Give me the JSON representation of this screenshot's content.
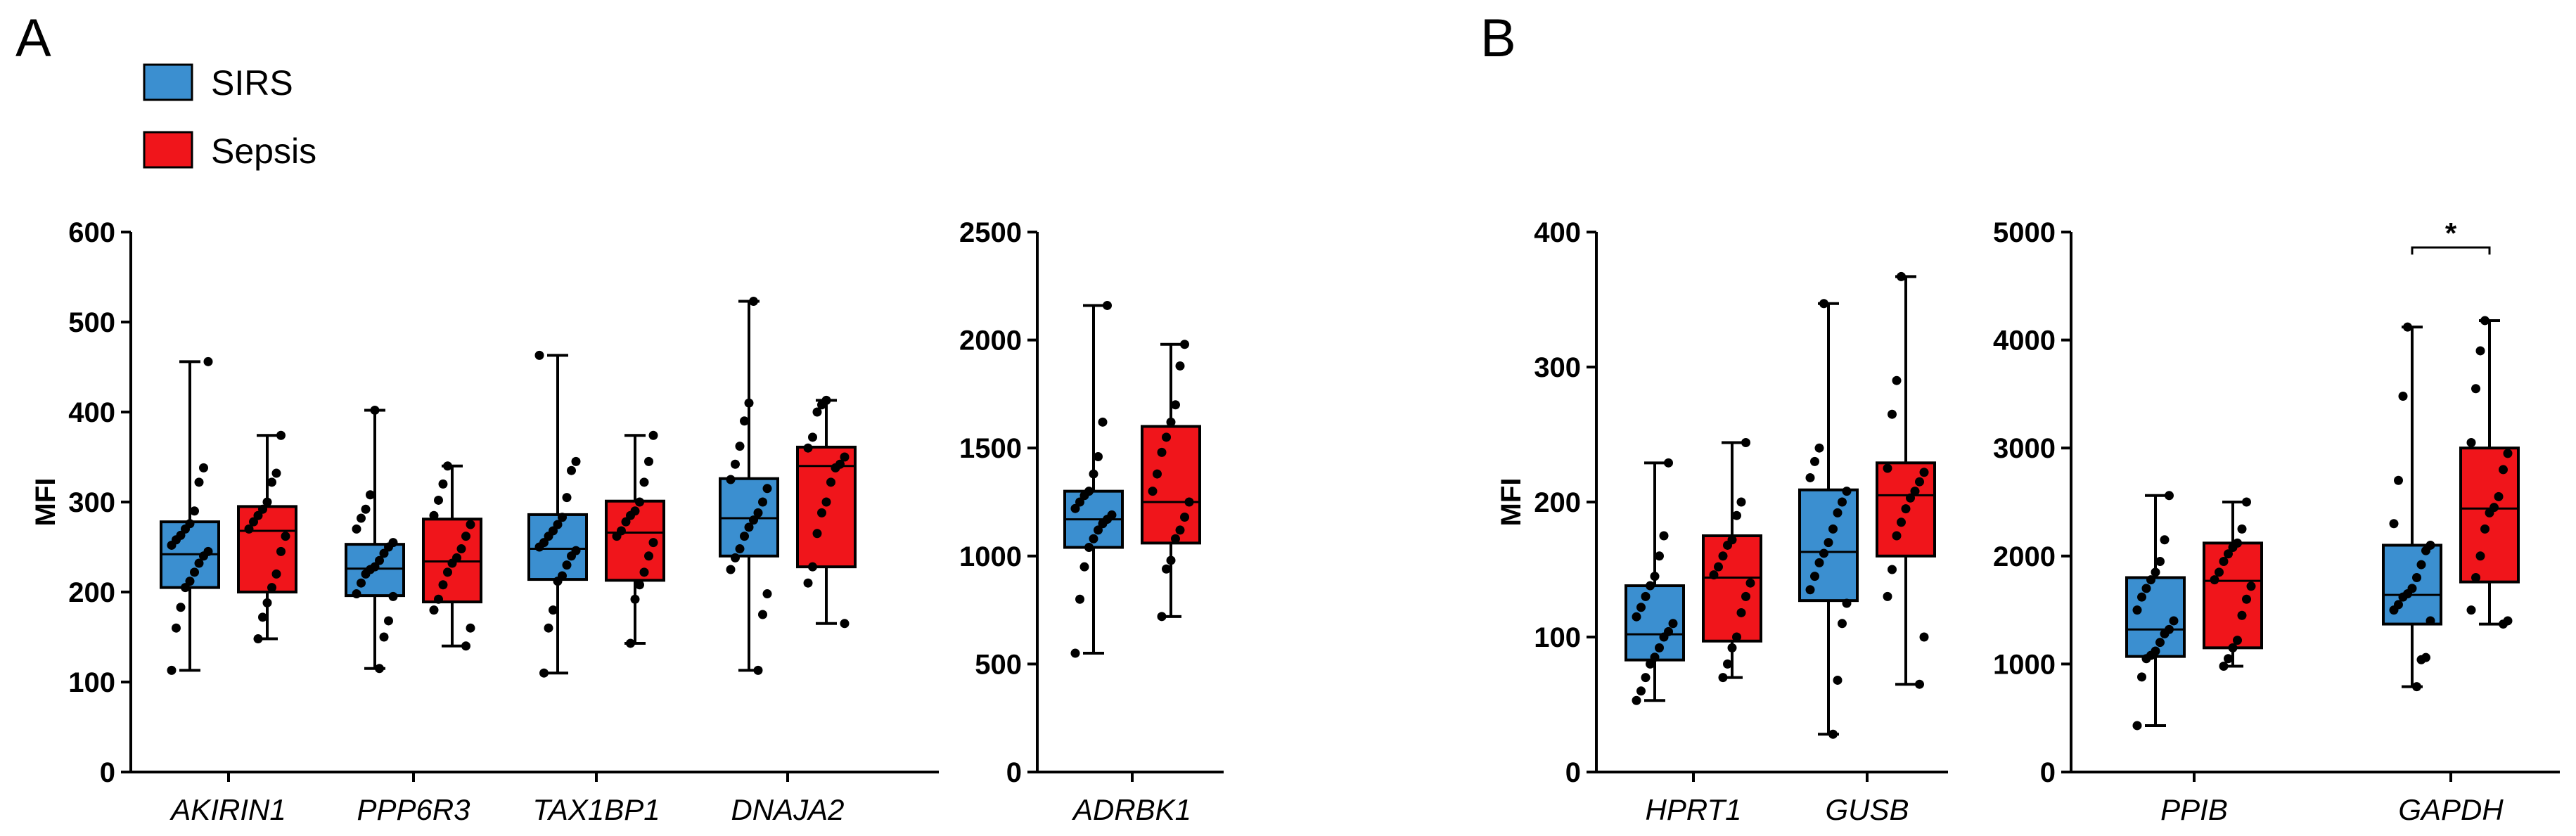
{
  "panels": {
    "a": "A",
    "b": "B"
  },
  "colors": {
    "SIRS": "#3b8fd0",
    "Sepsis": "#f0151b",
    "stroke": "#000000",
    "dot": "#000000"
  },
  "legend": [
    {
      "name": "SIRS",
      "label": "SIRS"
    },
    {
      "name": "Sepsis",
      "label": "Sepsis"
    }
  ],
  "chart_data": [
    {
      "type": "box",
      "panel": "A",
      "ylabel": "MFI",
      "ylim": [
        0,
        600
      ],
      "yticks": [
        0,
        100,
        200,
        300,
        400,
        500,
        600
      ],
      "categories": [
        "AKIRIN1",
        "PPP6R3",
        "TAX1BP1",
        "DNAJA2"
      ],
      "series": [
        {
          "name": "SIRS",
          "boxes": [
            {
              "min": 113,
              "q1": 205,
              "median": 242,
              "q3": 278,
              "max": 456,
              "points": [
                113,
                160,
                183,
                205,
                212,
                222,
                232,
                240,
                245,
                252,
                258,
                263,
                270,
                276,
                290,
                322,
                338,
                456
              ]
            },
            {
              "min": 115,
              "q1": 196,
              "median": 226,
              "q3": 253,
              "max": 402,
              "points": [
                115,
                150,
                168,
                195,
                198,
                210,
                220,
                225,
                228,
                235,
                243,
                250,
                255,
                270,
                282,
                292,
                308,
                402
              ]
            },
            {
              "min": 110,
              "q1": 214,
              "median": 248,
              "q3": 286,
              "max": 463,
              "points": [
                110,
                160,
                180,
                212,
                218,
                230,
                240,
                246,
                250,
                255,
                262,
                268,
                275,
                283,
                305,
                335,
                345,
                463
              ]
            },
            {
              "min": 113,
              "q1": 240,
              "median": 282,
              "q3": 326,
              "max": 523,
              "points": [
                113,
                175,
                198,
                225,
                238,
                248,
                262,
                272,
                280,
                288,
                300,
                315,
                325,
                342,
                362,
                390,
                410,
                523
              ]
            }
          ]
        },
        {
          "name": "Sepsis",
          "boxes": [
            {
              "min": 148,
              "q1": 200,
              "median": 268,
              "q3": 295,
              "max": 374,
              "points": [
                148,
                172,
                188,
                205,
                220,
                245,
                262,
                270,
                278,
                285,
                292,
                300,
                322,
                332,
                374
              ]
            },
            {
              "min": 140,
              "q1": 189,
              "median": 234,
              "q3": 281,
              "max": 340,
              "points": [
                140,
                160,
                180,
                192,
                208,
                222,
                232,
                238,
                248,
                262,
                275,
                285,
                302,
                320,
                340
              ]
            },
            {
              "min": 143,
              "q1": 213,
              "median": 266,
              "q3": 301,
              "max": 374,
              "points": [
                143,
                192,
                208,
                222,
                240,
                255,
                262,
                268,
                278,
                285,
                290,
                300,
                322,
                345,
                374
              ]
            },
            {
              "min": 165,
              "q1": 228,
              "median": 340,
              "q3": 361,
              "max": 413,
              "points": [
                165,
                210,
                228,
                265,
                288,
                300,
                322,
                338,
                342,
                350,
                360,
                372,
                400,
                408,
                413
              ]
            }
          ]
        }
      ]
    },
    {
      "type": "box",
      "panel": "A",
      "ylabel": "",
      "ylim": [
        0,
        2500
      ],
      "yticks": [
        0,
        500,
        1000,
        1500,
        2000,
        2500
      ],
      "categories": [
        "ADRBK1"
      ],
      "series": [
        {
          "name": "SIRS",
          "boxes": [
            {
              "min": 550,
              "q1": 1040,
              "median": 1170,
              "q3": 1300,
              "max": 2160,
              "points": [
                550,
                800,
                950,
                1040,
                1080,
                1120,
                1150,
                1170,
                1190,
                1220,
                1250,
                1280,
                1300,
                1380,
                1460,
                1620,
                2160
              ]
            }
          ]
        },
        {
          "name": "Sepsis",
          "boxes": [
            {
              "min": 720,
              "q1": 1060,
              "median": 1250,
              "q3": 1600,
              "max": 1980,
              "points": [
                720,
                940,
                980,
                1080,
                1120,
                1180,
                1250,
                1300,
                1380,
                1480,
                1550,
                1620,
                1700,
                1880,
                1980
              ]
            }
          ]
        }
      ]
    },
    {
      "type": "box",
      "panel": "B",
      "ylabel": "MFI",
      "ylim": [
        0,
        400
      ],
      "yticks": [
        0,
        100,
        200,
        300,
        400
      ],
      "categories": [
        "HPRT1",
        "GUSB"
      ],
      "series": [
        {
          "name": "SIRS",
          "boxes": [
            {
              "min": 53,
              "q1": 83,
              "median": 102,
              "q3": 138,
              "max": 229,
              "points": [
                53,
                60,
                70,
                80,
                85,
                92,
                100,
                104,
                110,
                115,
                122,
                130,
                138,
                145,
                160,
                175,
                229
              ]
            },
            {
              "min": 28,
              "q1": 127,
              "median": 163,
              "q3": 209,
              "max": 347,
              "points": [
                28,
                68,
                110,
                125,
                135,
                145,
                155,
                162,
                170,
                180,
                192,
                200,
                208,
                218,
                230,
                240,
                347
              ]
            }
          ]
        },
        {
          "name": "Sepsis",
          "boxes": [
            {
              "min": 70,
              "q1": 97,
              "median": 144,
              "q3": 175,
              "max": 244,
              "points": [
                70,
                80,
                92,
                100,
                118,
                130,
                140,
                146,
                152,
                160,
                168,
                172,
                190,
                200,
                244
              ]
            },
            {
              "min": 65,
              "q1": 160,
              "median": 205,
              "q3": 229,
              "max": 367,
              "points": [
                65,
                100,
                130,
                150,
                175,
                185,
                195,
                203,
                208,
                215,
                222,
                225,
                265,
                290,
                367
              ]
            }
          ]
        }
      ]
    },
    {
      "type": "box",
      "panel": "B",
      "ylabel": "",
      "ylim": [
        0,
        5000
      ],
      "yticks": [
        0,
        1000,
        2000,
        3000,
        4000,
        5000
      ],
      "categories": [
        "PPIB",
        "GAPDH"
      ],
      "significance": [
        {
          "category": "GAPDH",
          "label": "*"
        }
      ],
      "series": [
        {
          "name": "SIRS",
          "boxes": [
            {
              "min": 430,
              "q1": 1070,
              "median": 1320,
              "q3": 1800,
              "max": 2560,
              "points": [
                430,
                880,
                1050,
                1080,
                1120,
                1200,
                1280,
                1320,
                1400,
                1500,
                1620,
                1700,
                1780,
                1850,
                1950,
                2150,
                2560
              ]
            },
            {
              "min": 790,
              "q1": 1370,
              "median": 1640,
              "q3": 2100,
              "max": 4120,
              "points": [
                790,
                1040,
                1060,
                1400,
                1500,
                1550,
                1620,
                1650,
                1700,
                1800,
                1920,
                2050,
                2100,
                2300,
                2700,
                3480,
                4120
              ]
            }
          ]
        },
        {
          "name": "Sepsis",
          "boxes": [
            {
              "min": 980,
              "q1": 1150,
              "median": 1770,
              "q3": 2120,
              "max": 2500,
              "points": [
                980,
                1050,
                1150,
                1220,
                1450,
                1600,
                1720,
                1780,
                1850,
                1950,
                2020,
                2080,
                2120,
                2250,
                2500
              ]
            },
            {
              "min": 1370,
              "q1": 1760,
              "median": 2440,
              "q3": 3000,
              "max": 4180,
              "points": [
                1370,
                1400,
                1500,
                1800,
                2000,
                2250,
                2400,
                2450,
                2550,
                2800,
                2950,
                3050,
                3550,
                3900,
                4180
              ]
            }
          ]
        }
      ]
    }
  ]
}
